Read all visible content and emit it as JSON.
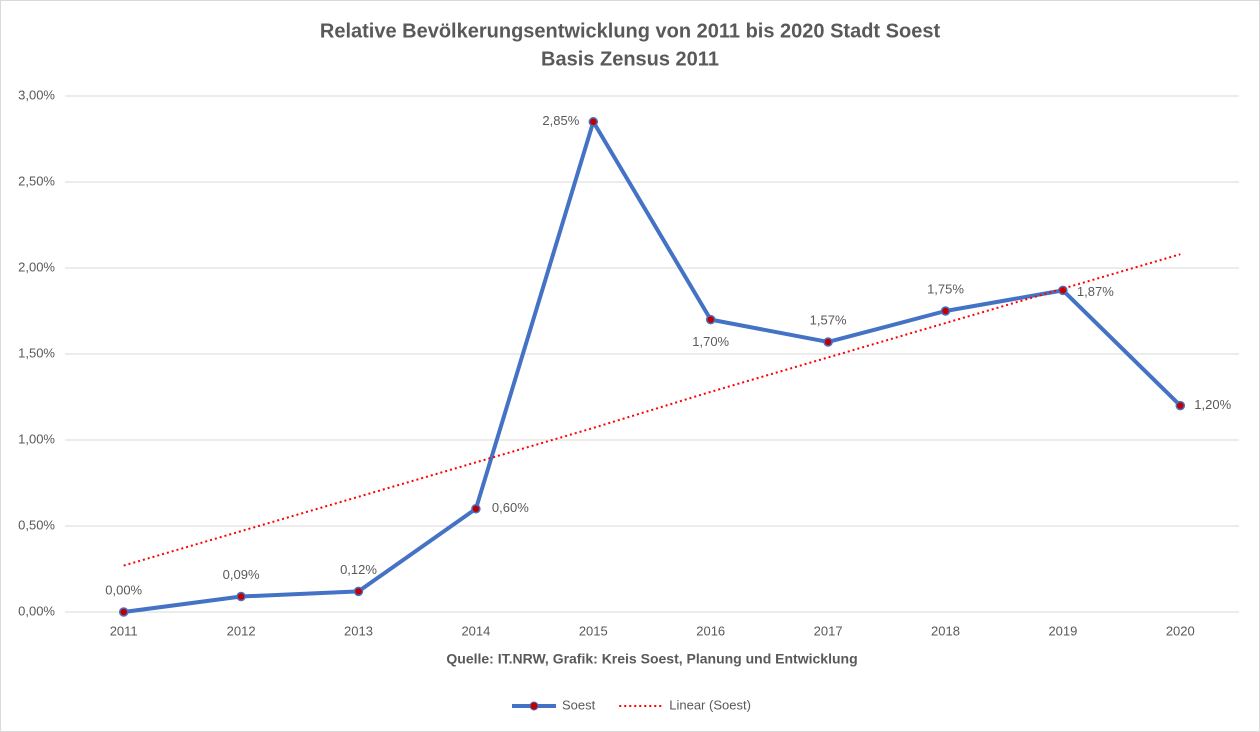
{
  "chart_data": {
    "type": "line",
    "title": "Relative Bevölkerungsentwicklung von 2011 bis 2020 Stadt Soest",
    "subtitle": "Basis Zensus 2011",
    "source": "Quelle: IT.NRW, Grafik: Kreis Soest, Planung und Entwicklung",
    "categories": [
      "2011",
      "2012",
      "2013",
      "2014",
      "2015",
      "2016",
      "2017",
      "2018",
      "2019",
      "2020"
    ],
    "series": [
      {
        "name": "Soest",
        "color": "#4472c4",
        "marker_color": "#c00000",
        "values": [
          0,
          0.09,
          0.12,
          0.6,
          2.85,
          1.7,
          1.57,
          1.75,
          1.87,
          1.2
        ],
        "value_labels": [
          "0,00%",
          "0,09%",
          "0,12%",
          "0,60%",
          "2,85%",
          "1,70%",
          "1,57%",
          "1,75%",
          "1,87%",
          "1,20%"
        ]
      },
      {
        "name": "Linear (Soest)",
        "color": "#ff0000",
        "dash": true,
        "values": [
          0.27,
          0.47,
          0.67,
          0.87,
          1.07,
          1.28,
          1.48,
          1.68,
          1.88,
          2.08
        ]
      }
    ],
    "ylim": [
      0,
      3
    ],
    "yticks": [
      {
        "value": 0,
        "label": "0,00%"
      },
      {
        "value": 0.5,
        "label": "0,50%"
      },
      {
        "value": 1,
        "label": "1,00%"
      },
      {
        "value": 1.5,
        "label": "1,50%"
      },
      {
        "value": 2,
        "label": "2,00%"
      },
      {
        "value": 2.5,
        "label": "2,50%"
      },
      {
        "value": 3,
        "label": "3,00%"
      }
    ],
    "grid": true,
    "legend": "bottom"
  }
}
